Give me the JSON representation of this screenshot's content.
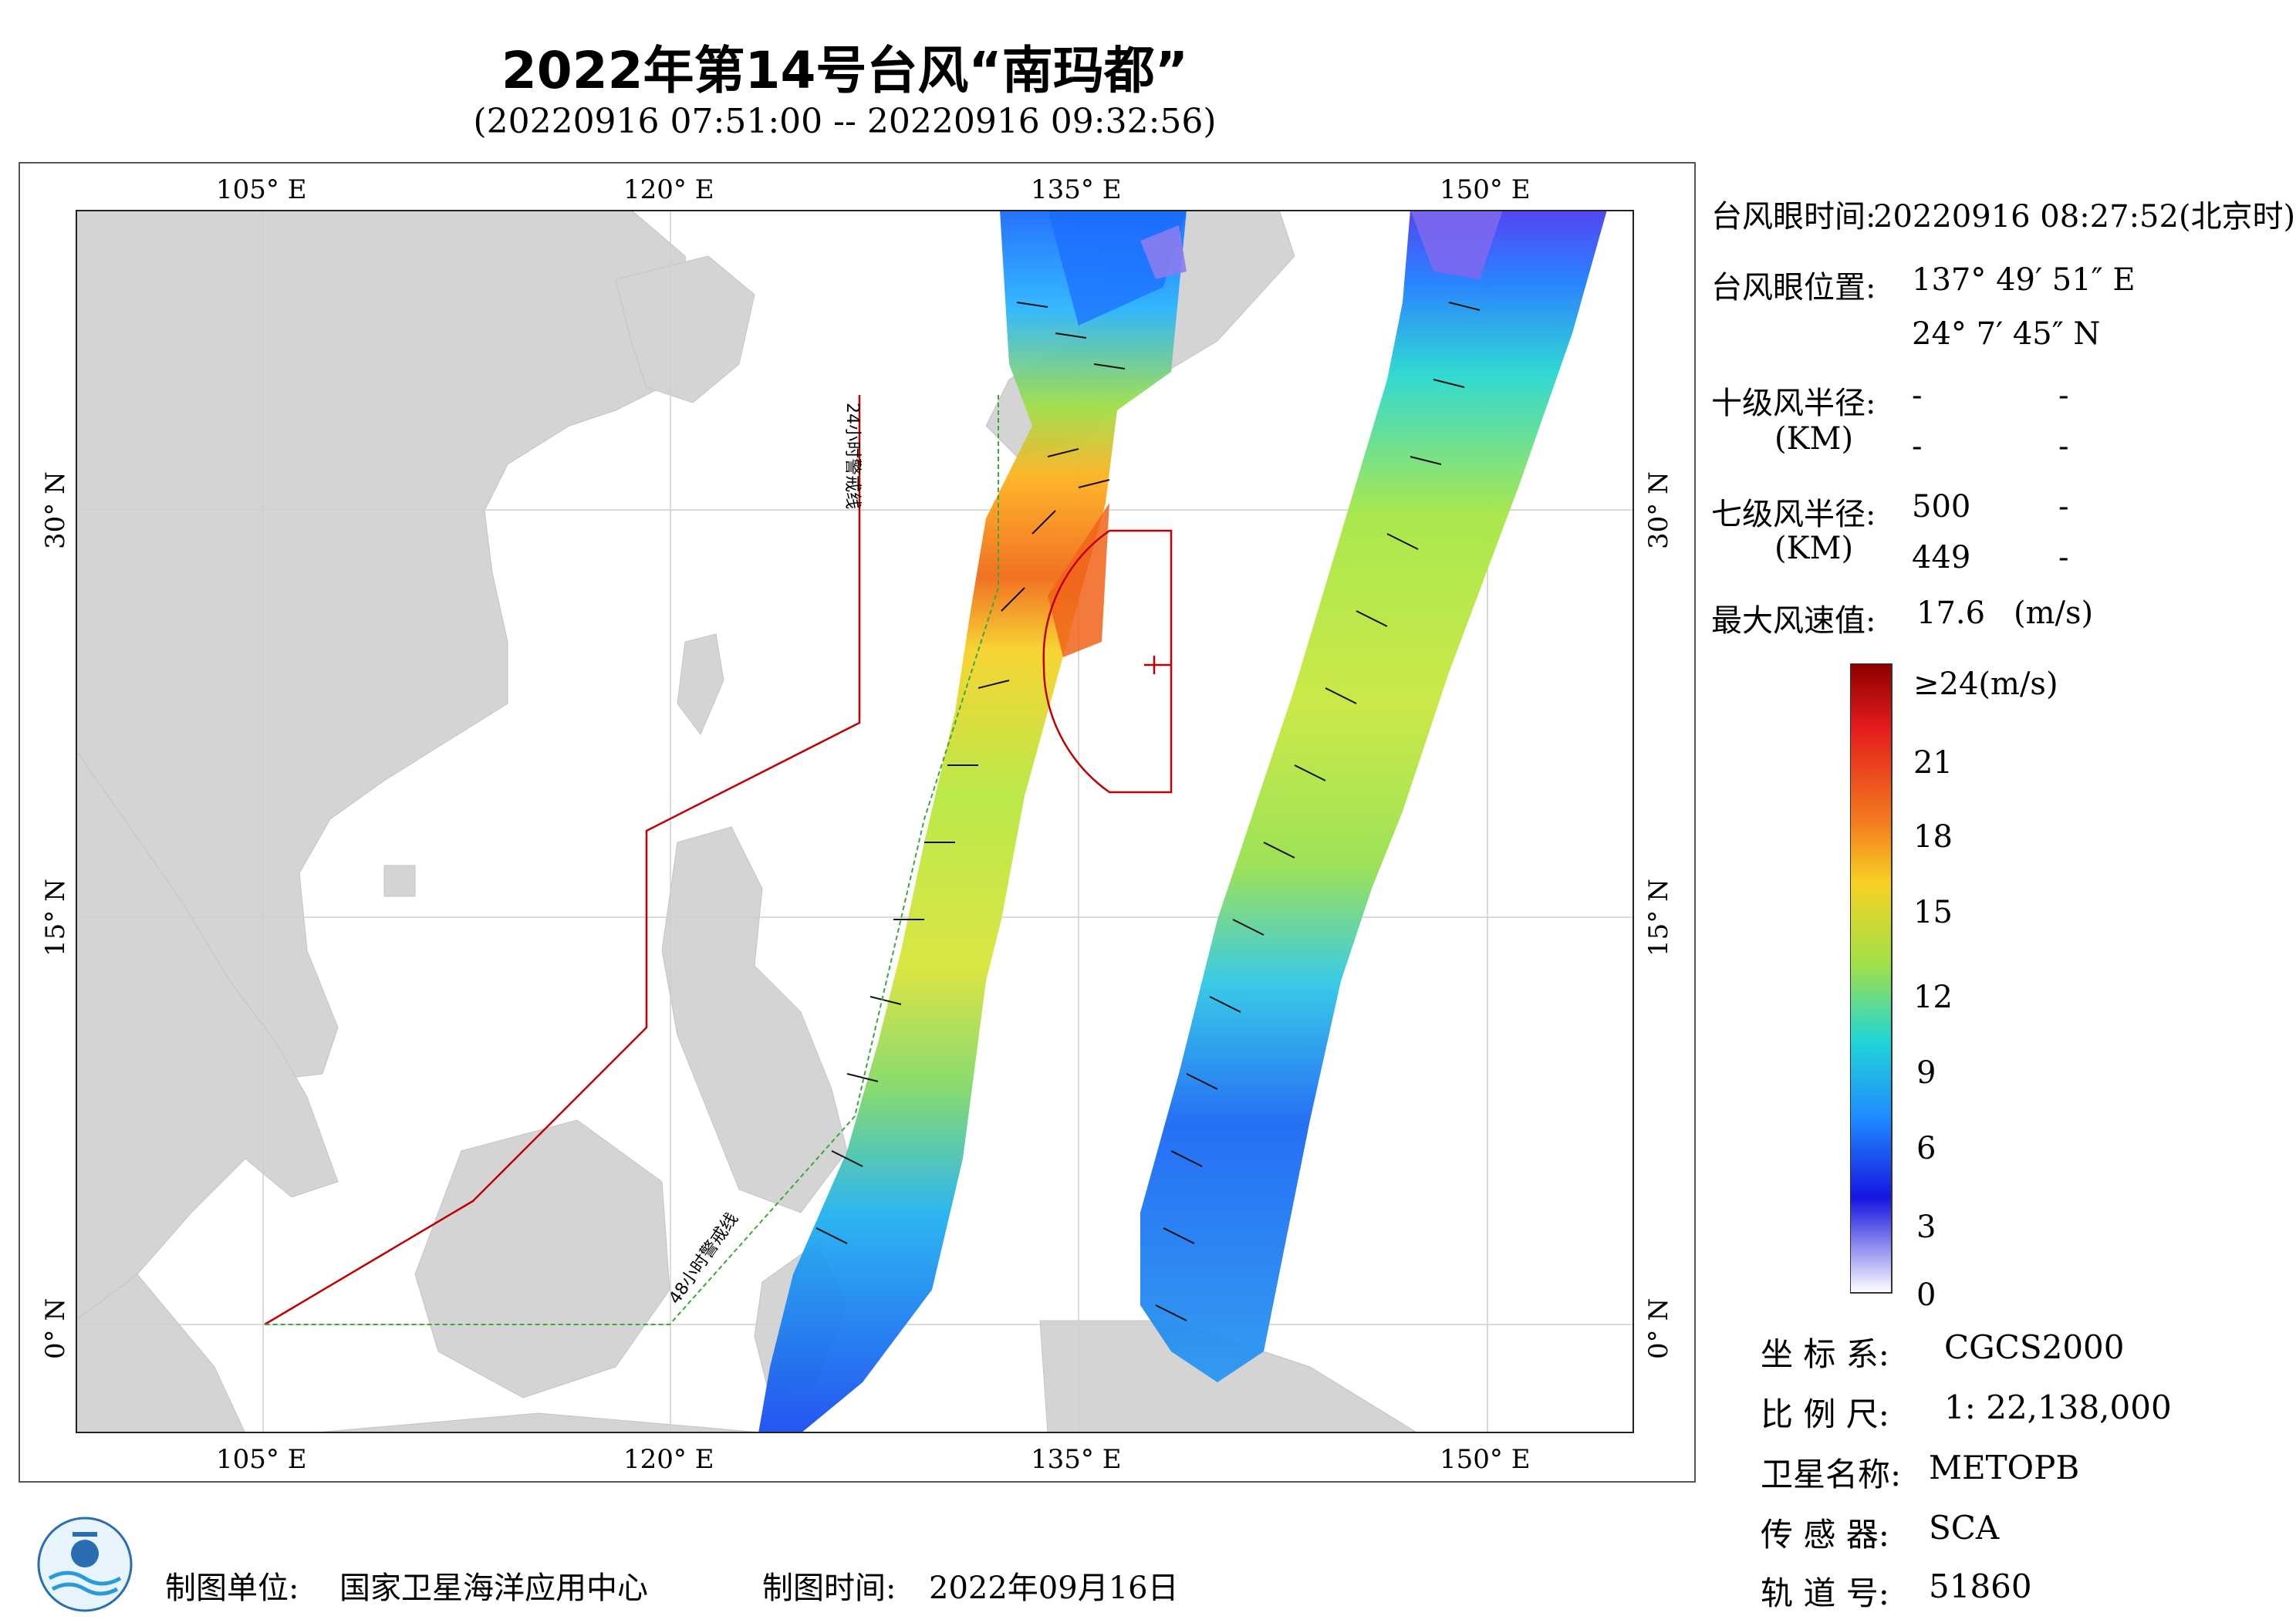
{
  "title": "2022年第14号台风“南玛都”",
  "subtitle": "(20220916 07:51:00 -- 20220916 09:32:56)",
  "map": {
    "top_lon_labels": [
      "105° E",
      "120° E",
      "135° E",
      "150° E"
    ],
    "bottom_lon_labels": [
      "105° E",
      "120° E",
      "135° E",
      "150° E"
    ],
    "lat_labels": [
      "30° N",
      "15° N",
      "0° N"
    ],
    "warning_line_24h": "24小时警戒线",
    "warning_line_48h": "48小时警戒线",
    "land_color": "#d4d4d4",
    "warning_24h_color": "#c00000",
    "warning_48h_color": "#3aa83a"
  },
  "panel": {
    "eye_time_label": "台风眼时间:",
    "eye_time_value": "20220916 08:27:52(北京时)",
    "eye_pos_label": "台风眼位置:",
    "eye_lon": "137° 49′ 51″ E",
    "eye_lat": "24° 7′ 45″ N",
    "r10_label": "十级风半径:",
    "r10_unit": "(KM)",
    "r10_values": [
      "-",
      "-",
      "-",
      "-"
    ],
    "r7_label": "七级风半径:",
    "r7_unit": "(KM)",
    "r7_values": [
      "500",
      "-",
      "449",
      "-"
    ],
    "max_wind_label": "最大风速值:",
    "max_wind_value": "17.6",
    "max_wind_unit": "(m/s)"
  },
  "colorbar": {
    "labels": [
      "≥24(m/s)",
      "21",
      "18",
      "15",
      "12",
      "9",
      "6",
      "3",
      "0"
    ]
  },
  "meta": {
    "crs_label": "坐 标 系:",
    "crs_value": "CGCS2000",
    "scale_label": "比 例 尺:",
    "scale_value": "1: 22,138,000",
    "satellite_label": "卫星名称:",
    "satellite_value": "METOPB",
    "sensor_label": "传 感 器:",
    "sensor_value": "SCA",
    "orbit_label": "轨 道 号:",
    "orbit_value": "51860"
  },
  "footer": {
    "producer_label": "制图单位:",
    "producer_value": "国家卫星海洋应用中心",
    "date_label": "制图时间:",
    "date_value": "2022年09月16日"
  }
}
